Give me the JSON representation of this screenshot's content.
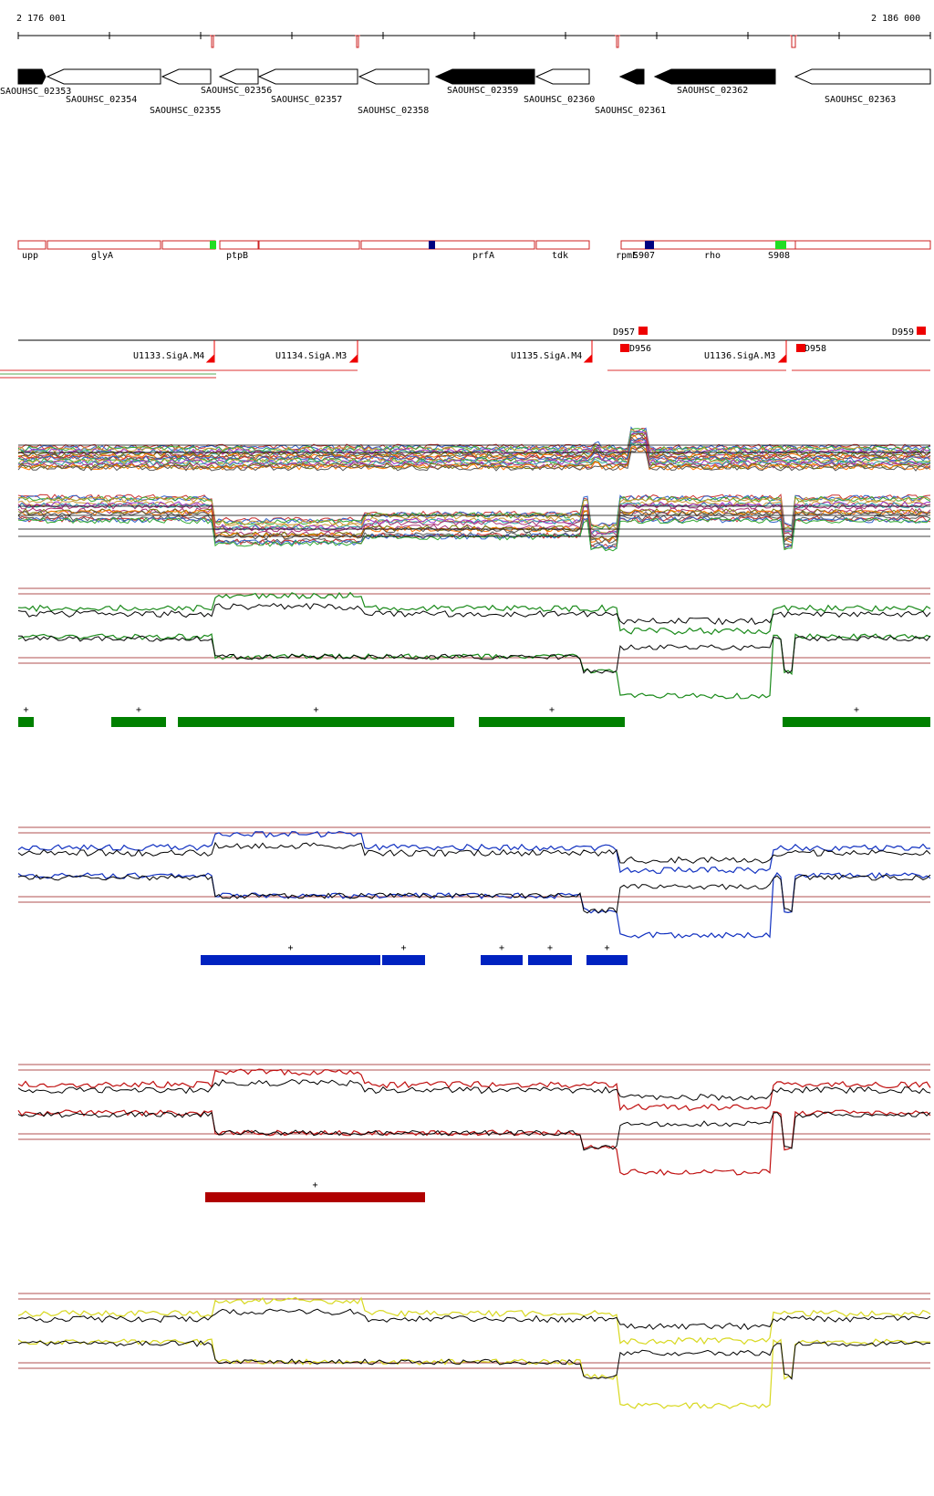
{
  "coords": {
    "start_label": "2 176 001",
    "end_label": "2 186 000"
  },
  "genes": [
    {
      "label": "SAOUHSC_02353",
      "fill": "#000000",
      "dir": "right"
    },
    {
      "label": "SAOUHSC_02354",
      "fill": "#ffffff",
      "dir": "left"
    },
    {
      "label": "SAOUHSC_02355",
      "fill": "#ffffff",
      "dir": "left"
    },
    {
      "label": "SAOUHSC_02356",
      "fill": "#ffffff",
      "dir": "left"
    },
    {
      "label": "SAOUHSC_02357",
      "fill": "#ffffff",
      "dir": "left"
    },
    {
      "label": "SAOUHSC_02358",
      "fill": "#ffffff",
      "dir": "left"
    },
    {
      "label": "SAOUHSC_02359",
      "fill": "#000000",
      "dir": "left"
    },
    {
      "label": "SAOUHSC_02360",
      "fill": "#ffffff",
      "dir": "left"
    },
    {
      "label": "SAOUHSC_02361",
      "fill": "#000000",
      "dir": "left"
    },
    {
      "label": "SAOUHSC_02362",
      "fill": "#000000",
      "dir": "left"
    },
    {
      "label": "SAOUHSC_02363",
      "fill": "#ffffff",
      "dir": "left"
    }
  ],
  "gene_names": [
    "upp",
    "glyA",
    "ptpB",
    "prfA",
    "tdk",
    "rpmE",
    "S907",
    "rho",
    "S908"
  ],
  "promoters": [
    "U1133.SigA.M4",
    "U1134.SigA.M3",
    "U1135.SigA.M4",
    "U1136.SigA.M3"
  ],
  "terminators": [
    "D957",
    "D956",
    "D959",
    "D958"
  ],
  "tracks": [
    {
      "name": "all-conditions",
      "color": "#8a6a3a"
    },
    {
      "name": "condition-green",
      "color": "#1a8a1a"
    },
    {
      "name": "condition-blue",
      "color": "#1030c0"
    },
    {
      "name": "condition-red",
      "color": "#c01010"
    },
    {
      "name": "condition-yellow",
      "color": "#d8d820"
    }
  ],
  "segment_marker": "+",
  "colors": {
    "gene_outline": "#cc2222",
    "green_seg": "#008000",
    "blue_seg": "#0022c0",
    "red_seg": "#b00000",
    "box_green": "#22dd22",
    "box_navy": "#000080",
    "marker_red": "#ee0000"
  }
}
